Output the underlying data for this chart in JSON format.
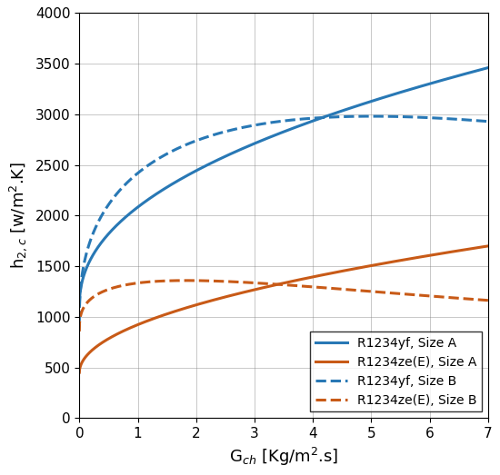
{
  "blue_color": "#2878b5",
  "orange_color": "#c85a17",
  "xlim": [
    0,
    7
  ],
  "ylim": [
    0,
    4000
  ],
  "xticks": [
    0,
    1,
    2,
    3,
    4,
    5,
    6,
    7
  ],
  "yticks": [
    0,
    500,
    1000,
    1500,
    2000,
    2500,
    3000,
    3500,
    4000
  ],
  "xlabel": "G$_{ch}$ [Kg/m$^2$.s]",
  "ylabel": "h$_{2,c}$ [w/m$^2$.K]",
  "legend_labels": [
    "R1234yf, Size A",
    "R1234ze(E), Size A",
    "R1234yf, Size B",
    "R1234ze(E), Size B"
  ],
  "figsize": [
    5.5,
    5.23
  ],
  "dpi": 100
}
